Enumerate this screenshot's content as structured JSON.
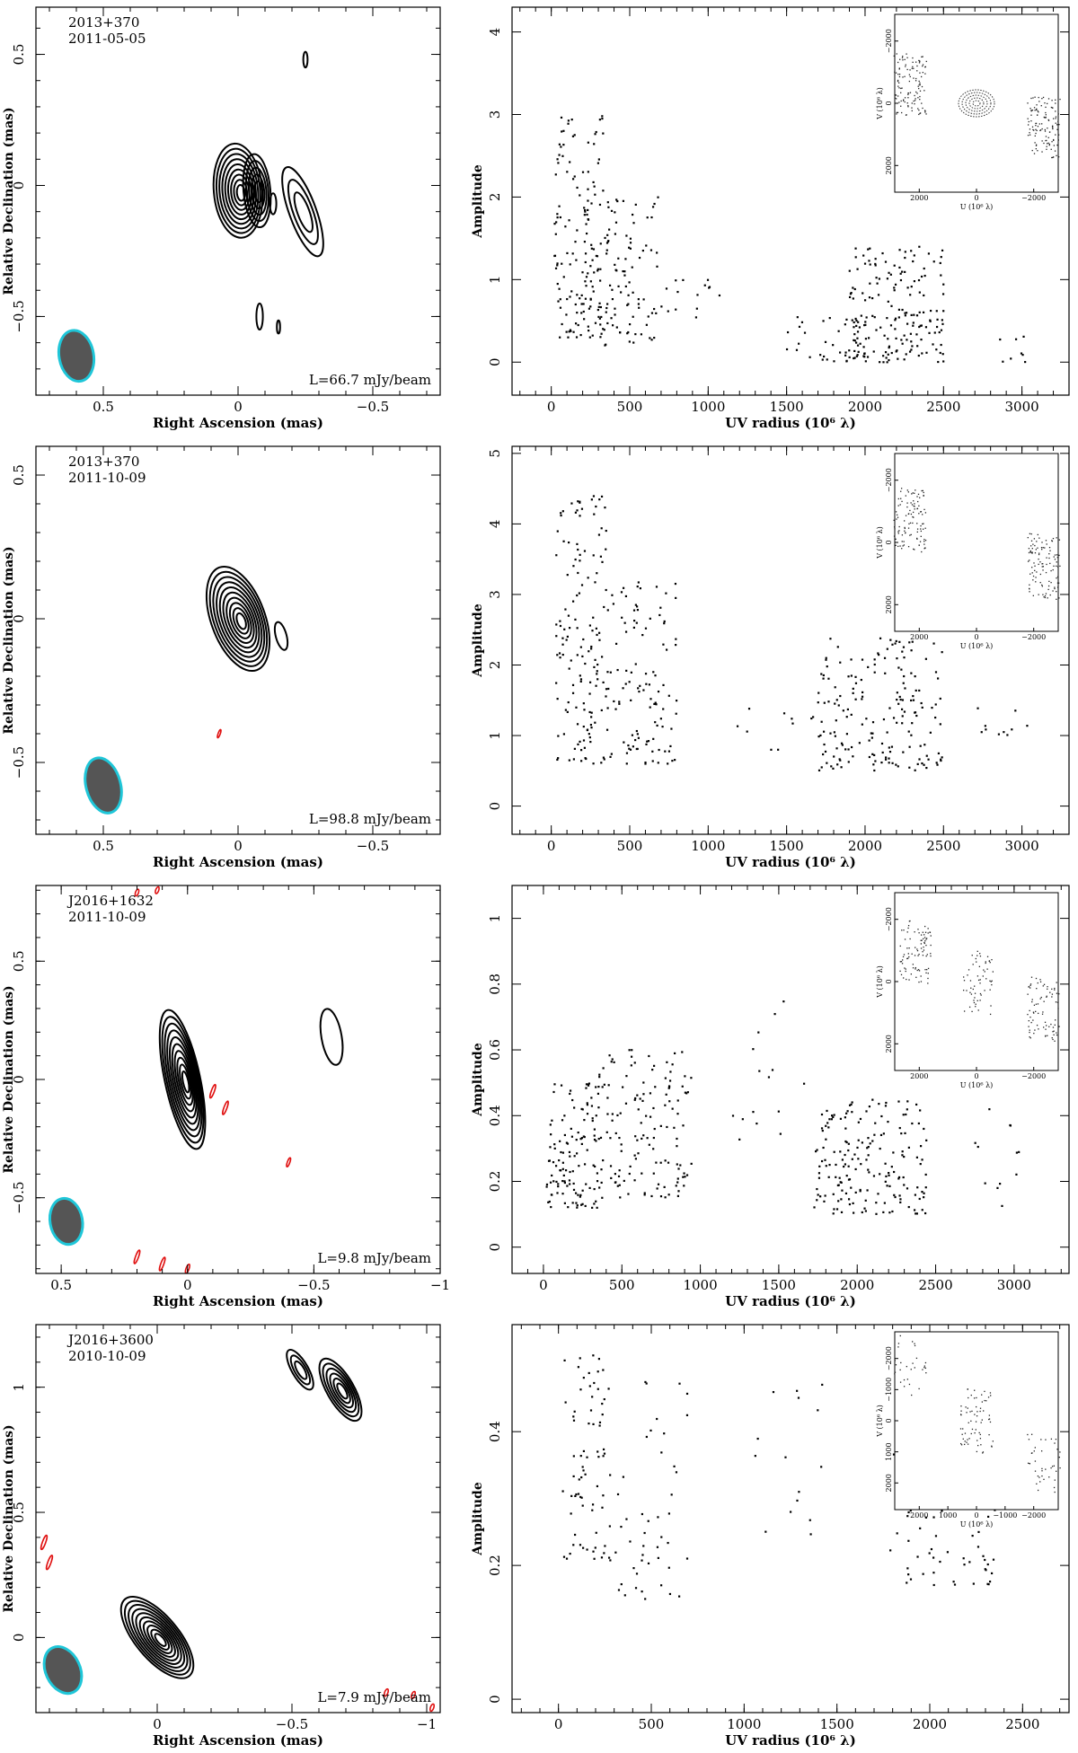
{
  "figure": {
    "rows": [
      {
        "map": {
          "source": "2013+370",
          "date": "2011-05-05",
          "peak_label": "L=66.7 mJy/beam",
          "xlabel": "Right Ascension  (mas)",
          "ylabel": "Relative Declination  (mas)",
          "xlim": [
            0.75,
            -0.75
          ],
          "ylim": [
            -0.8,
            0.68
          ],
          "xticks": [
            0.5,
            0,
            -0.5
          ],
          "xtick_labels": [
            "0.5",
            "0",
            "−0.5"
          ],
          "yticks": [
            -0.5,
            0,
            0.5
          ],
          "ytick_labels": [
            "−0.5",
            "0",
            "0.5"
          ],
          "beam": {
            "x": 0.6,
            "y": -0.65,
            "major": 0.14,
            "minor": 0.04,
            "angle": -10
          },
          "components": [
            {
              "x": 0.0,
              "y": -0.02,
              "sx": 0.09,
              "sy": 0.18,
              "angle": -5,
              "levels": 9
            },
            {
              "x": -0.07,
              "y": -0.02,
              "sx": 0.05,
              "sy": 0.14,
              "angle": -5,
              "levels": 5
            },
            {
              "x": -0.24,
              "y": -0.1,
              "sx": 0.05,
              "sy": 0.18,
              "angle": -20,
              "levels": 3
            },
            {
              "x": -0.13,
              "y": -0.07,
              "sx": 0.012,
              "sy": 0.04,
              "angle": 0,
              "levels": 1
            },
            {
              "x": -0.25,
              "y": 0.48,
              "sx": 0.008,
              "sy": 0.03,
              "angle": 0,
              "levels": 1
            },
            {
              "x": -0.08,
              "y": -0.5,
              "sx": 0.012,
              "sy": 0.05,
              "angle": 0,
              "levels": 1
            },
            {
              "x": -0.15,
              "y": -0.54,
              "sx": 0.006,
              "sy": 0.025,
              "angle": 0,
              "levels": 1
            }
          ],
          "negative": []
        },
        "uv": {
          "xlabel": "UV radius  (10⁶ λ)",
          "ylabel": "Amplitude",
          "xlim": [
            -250,
            3300
          ],
          "ylim": [
            -0.4,
            4.3
          ],
          "xticks": [
            0,
            500,
            1000,
            1500,
            2000,
            2500,
            3000
          ],
          "yticks": [
            0,
            1,
            2,
            3,
            4
          ],
          "clusters": [
            {
              "x": [
                20,
                330
              ],
              "y": [
                0.3,
                3.0
              ],
              "n": 150
            },
            {
              "x": [
                330,
                680
              ],
              "y": [
                0.2,
                2.0
              ],
              "n": 90
            },
            {
              "x": [
                700,
                1100
              ],
              "y": [
                0.5,
                1.0
              ],
              "n": 15
            },
            {
              "x": [
                1500,
                2000
              ],
              "y": [
                0.0,
                0.6
              ],
              "n": 35
            },
            {
              "x": [
                1900,
                2500
              ],
              "y": [
                0.0,
                1.4
              ],
              "n": 180
            },
            {
              "x": [
                2800,
                3100
              ],
              "y": [
                0.0,
                0.6
              ],
              "n": 8
            }
          ],
          "inset": {
            "xlabel": "U (10⁶ λ)",
            "ylabel": "V (10⁶ λ)",
            "ticks": [
              2000,
              0,
              -2000
            ],
            "arms": [
              {
                "cx": -0.6,
                "cy": 0.1,
                "n": 120
              },
              {
                "cx": 0.6,
                "cy": -0.15,
                "n": 120
              }
            ],
            "core_rings": 5
          }
        }
      },
      {
        "map": {
          "source": "2013+370",
          "date": "2011-10-09",
          "peak_label": "L=98.8 mJy/beam",
          "xlabel": "Right Ascension  (mas)",
          "ylabel": "Relative Declination  (mas)",
          "xlim": [
            0.75,
            -0.75
          ],
          "ylim": [
            -0.75,
            0.6
          ],
          "xticks": [
            0.5,
            0,
            -0.5
          ],
          "xtick_labels": [
            "0.5",
            "0",
            "−0.5"
          ],
          "yticks": [
            -0.5,
            0,
            0.5
          ],
          "ytick_labels": [
            "−0.5",
            "0",
            "0.5"
          ],
          "beam": {
            "x": 0.5,
            "y": -0.58,
            "major": 0.14,
            "minor": 0.04,
            "angle": -15
          },
          "components": [
            {
              "x": 0.0,
              "y": 0.0,
              "sx": 0.1,
              "sy": 0.19,
              "angle": -20,
              "levels": 10
            },
            {
              "x": -0.16,
              "y": -0.06,
              "sx": 0.02,
              "sy": 0.05,
              "angle": -15,
              "levels": 1
            }
          ],
          "negative": [
            {
              "x": 0.07,
              "y": -0.4,
              "sx": 0.004,
              "sy": 0.015
            }
          ]
        },
        "uv": {
          "xlabel": "UV radius  (10⁶ λ)",
          "ylabel": "Amplitude",
          "xlim": [
            -250,
            3300
          ],
          "ylim": [
            -0.4,
            5.1
          ],
          "xticks": [
            0,
            500,
            1000,
            1500,
            2000,
            2500,
            3000
          ],
          "yticks": [
            0,
            1,
            2,
            3,
            4,
            5
          ],
          "clusters": [
            {
              "x": [
                20,
                350
              ],
              "y": [
                0.6,
                4.5
              ],
              "n": 140
            },
            {
              "x": [
                350,
                800
              ],
              "y": [
                0.6,
                3.2
              ],
              "n": 110
            },
            {
              "x": [
                1100,
                1700
              ],
              "y": [
                0.8,
                1.4
              ],
              "n": 10
            },
            {
              "x": [
                1700,
                2500
              ],
              "y": [
                0.5,
                2.4
              ],
              "n": 180
            },
            {
              "x": [
                2700,
                3050
              ],
              "y": [
                1.0,
                1.6
              ],
              "n": 10
            }
          ],
          "inset": {
            "xlabel": "U (10⁶ λ)",
            "ylabel": "V (10⁶ λ)",
            "ticks": [
              2000,
              0,
              -2000
            ],
            "arms": [
              {
                "cx": -0.6,
                "cy": 0.15,
                "n": 110
              },
              {
                "cx": 0.6,
                "cy": -0.15,
                "n": 110
              }
            ],
            "core_rings": 0
          }
        }
      },
      {
        "map": {
          "source": "J2016+1632",
          "date": "2011-10-09",
          "peak_label": "L=9.8 mJy/beam",
          "xlabel": "Right Ascension  (mas)",
          "ylabel": "Relative Declination  (mas)",
          "xlim": [
            0.6,
            -1.0
          ],
          "ylim": [
            -0.82,
            0.82
          ],
          "xticks": [
            0.5,
            0,
            -0.5,
            -1
          ],
          "xtick_labels": [
            "0.5",
            "0",
            "−0.5",
            "−1"
          ],
          "yticks": [
            -0.5,
            0,
            0.5
          ],
          "ytick_labels": [
            "−0.5",
            "0",
            "0.5"
          ],
          "beam": {
            "x": 0.48,
            "y": -0.6,
            "major": 0.14,
            "minor": 0.04,
            "angle": -10
          },
          "components": [
            {
              "x": 0.02,
              "y": 0.0,
              "sx": 0.07,
              "sy": 0.3,
              "angle": -12,
              "levels": 10
            },
            {
              "x": -0.57,
              "y": 0.18,
              "sx": 0.04,
              "sy": 0.12,
              "angle": -10,
              "levels": 1
            }
          ],
          "negative": [
            {
              "x": 0.12,
              "y": 0.8,
              "sx": 0.006,
              "sy": 0.015
            },
            {
              "x": 0.2,
              "y": 0.79,
              "sx": 0.006,
              "sy": 0.015
            },
            {
              "x": -0.1,
              "y": -0.05,
              "sx": 0.006,
              "sy": 0.03
            },
            {
              "x": -0.15,
              "y": -0.12,
              "sx": 0.006,
              "sy": 0.03
            },
            {
              "x": -0.4,
              "y": -0.35,
              "sx": 0.005,
              "sy": 0.02
            },
            {
              "x": 0.2,
              "y": -0.75,
              "sx": 0.006,
              "sy": 0.03
            },
            {
              "x": 0.1,
              "y": -0.78,
              "sx": 0.006,
              "sy": 0.03
            },
            {
              "x": 0.0,
              "y": -0.8,
              "sx": 0.006,
              "sy": 0.02
            }
          ]
        },
        "uv": {
          "xlabel": "UV radius  (10⁶ λ)",
          "ylabel": "Amplitude",
          "xlim": [
            -200,
            3350
          ],
          "ylim": [
            -0.08,
            1.1
          ],
          "xticks": [
            0,
            500,
            1000,
            1500,
            2000,
            2500,
            3000
          ],
          "yticks": [
            0,
            0.2,
            0.4,
            0.6,
            0.8,
            1
          ],
          "ytick_labels": [
            "0",
            "0.2",
            "0.4",
            "0.6",
            "0.8",
            "1"
          ],
          "clusters": [
            {
              "x": [
                20,
                350
              ],
              "y": [
                0.12,
                0.5
              ],
              "n": 120
            },
            {
              "x": [
                350,
                950
              ],
              "y": [
                0.15,
                0.6
              ],
              "n": 140
            },
            {
              "x": [
                1150,
                1700
              ],
              "y": [
                0.3,
                0.8
              ],
              "n": 15
            },
            {
              "x": [
                1700,
                2450
              ],
              "y": [
                0.1,
                0.45
              ],
              "n": 180
            },
            {
              "x": [
                2750,
                3100
              ],
              "y": [
                0.1,
                0.45
              ],
              "n": 12
            }
          ],
          "inset": {
            "xlabel": "U (10⁶ λ)",
            "ylabel": "V (10⁶ λ)",
            "ticks": [
              2000,
              0,
              -2000
            ],
            "arms": [
              {
                "cx": -0.55,
                "cy": 0.25,
                "n": 90
              },
              {
                "cx": 0.0,
                "cy": 0.0,
                "n": 60
              },
              {
                "cx": 0.6,
                "cy": -0.2,
                "n": 80
              }
            ],
            "core_rings": 0
          }
        }
      },
      {
        "map": {
          "source": "J2016+3600",
          "date": "2010-10-09",
          "peak_label": "L=7.9 mJy/beam",
          "xlabel": "Right Ascension  (mas)",
          "ylabel": "Relative Declination  (mas)",
          "xlim": [
            0.45,
            -1.05
          ],
          "ylim": [
            -0.3,
            1.25
          ],
          "xticks": [
            0,
            -0.5,
            -1
          ],
          "xtick_labels": [
            "0",
            "−0.5",
            "−1"
          ],
          "yticks": [
            0,
            0.5,
            1
          ],
          "ytick_labels": [
            "0",
            "0.5",
            "1"
          ],
          "beam": {
            "x": 0.35,
            "y": -0.13,
            "major": 0.14,
            "minor": 0.04,
            "angle": -25
          },
          "components": [
            {
              "x": 0.0,
              "y": 0.0,
              "sx": 0.08,
              "sy": 0.2,
              "angle": -40,
              "levels": 10
            },
            {
              "x": -0.53,
              "y": 1.07,
              "sx": 0.03,
              "sy": 0.09,
              "angle": -30,
              "levels": 3
            },
            {
              "x": -0.68,
              "y": 0.99,
              "sx": 0.05,
              "sy": 0.14,
              "angle": -30,
              "levels": 6
            }
          ],
          "negative": [
            {
              "x": 0.42,
              "y": 0.38,
              "sx": 0.006,
              "sy": 0.03
            },
            {
              "x": 0.4,
              "y": 0.3,
              "sx": 0.006,
              "sy": 0.03
            },
            {
              "x": -0.85,
              "y": -0.22,
              "sx": 0.006,
              "sy": 0.015
            },
            {
              "x": -0.95,
              "y": -0.23,
              "sx": 0.006,
              "sy": 0.015
            },
            {
              "x": -1.02,
              "y": -0.28,
              "sx": 0.006,
              "sy": 0.015
            }
          ]
        },
        "uv": {
          "xlabel": "UV radius  (10⁶ λ)",
          "ylabel": "Amplitude",
          "xlim": [
            -250,
            2750
          ],
          "ylim": [
            -0.02,
            0.56
          ],
          "xticks": [
            0,
            500,
            1000,
            1500,
            2000,
            2500
          ],
          "yticks": [
            0,
            0.2,
            0.4
          ],
          "ytick_labels": [
            "0",
            "0.2",
            "0.4"
          ],
          "clusters": [
            {
              "x": [
                20,
                250
              ],
              "y": [
                0.21,
                0.52
              ],
              "n": 70
            },
            {
              "x": [
                250,
                700
              ],
              "y": [
                0.15,
                0.49
              ],
              "n": 50
            },
            {
              "x": [
                1050,
                1450
              ],
              "y": [
                0.24,
                0.48
              ],
              "n": 15
            },
            {
              "x": [
                1750,
                2350
              ],
              "y": [
                0.17,
                0.4
              ],
              "n": 70
            }
          ],
          "inset": {
            "xlabel": "U (10⁶ λ)",
            "ylabel": "V (10⁶ λ)",
            "ticks": [
              2000,
              1000,
              0,
              -1000,
              -2000
            ],
            "arms": [
              {
                "cx": -0.6,
                "cy": 0.5,
                "n": 30
              },
              {
                "cx": 0.0,
                "cy": 0.0,
                "n": 70
              },
              {
                "cx": 0.6,
                "cy": -0.4,
                "n": 40
              }
            ],
            "core_rings": 0
          }
        }
      }
    ]
  }
}
